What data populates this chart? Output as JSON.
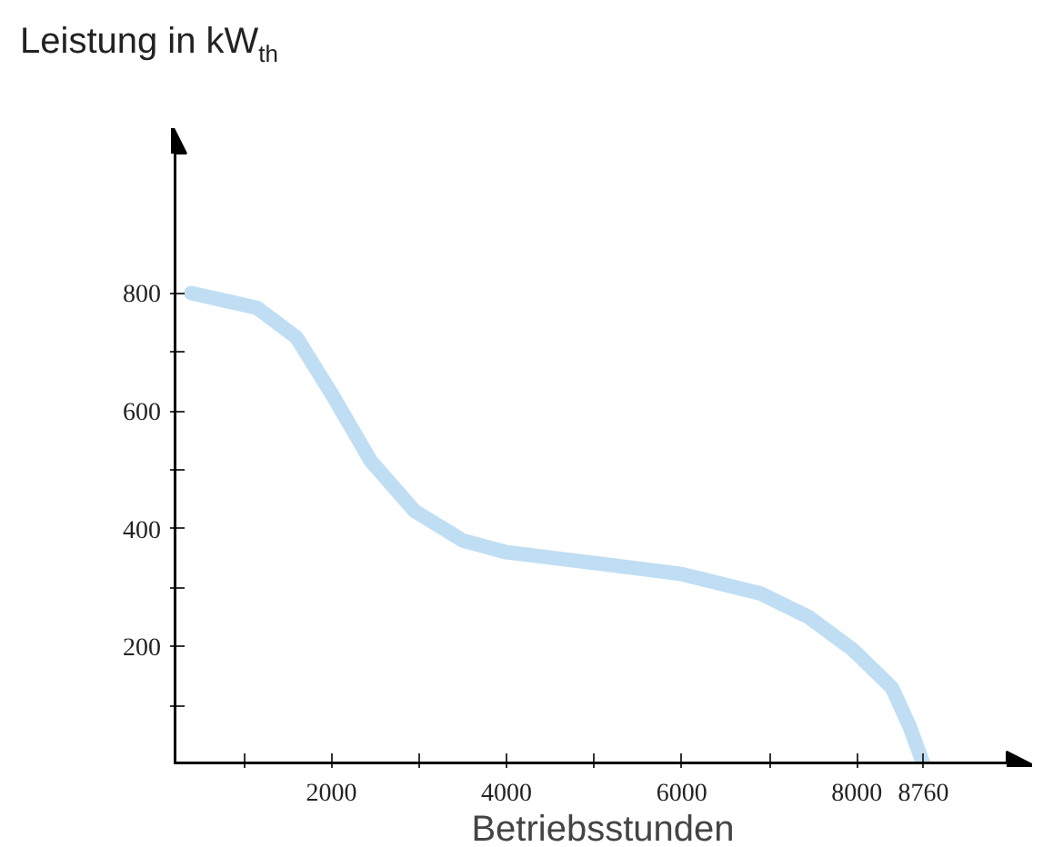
{
  "chart_data": {
    "type": "line",
    "ylabel": "Leistung in kW$_{th}$",
    "xlabel": "Betriebsstunden",
    "x": [
      400,
      1150,
      1600,
      2000,
      2450,
      2950,
      3500,
      4000,
      5100,
      6000,
      6900,
      7450,
      7950,
      8400,
      8600,
      8760
    ],
    "series": [
      {
        "color": "#b8daf2",
        "values": [
          800,
          775,
          725,
          630,
          515,
          430,
          380,
          360,
          340,
          323,
          290,
          250,
          195,
          130,
          65,
          0
        ]
      }
    ],
    "xlim": [
      200,
      10000
    ],
    "ylim": [
      0,
      1080
    ],
    "xticks": [
      {
        "value": 1000,
        "label": null
      },
      2000,
      {
        "value": 3000,
        "label": null
      },
      4000,
      {
        "value": 5000,
        "label": null
      },
      6000,
      {
        "value": 7000,
        "label": null
      },
      8000,
      8760
    ],
    "yticks": [
      {
        "value": 100,
        "label": null
      },
      200,
      {
        "value": 300,
        "label": null
      },
      400,
      {
        "value": 500,
        "label": null
      },
      600,
      {
        "value": 700,
        "label": null
      },
      800
    ],
    "grid": false
  }
}
